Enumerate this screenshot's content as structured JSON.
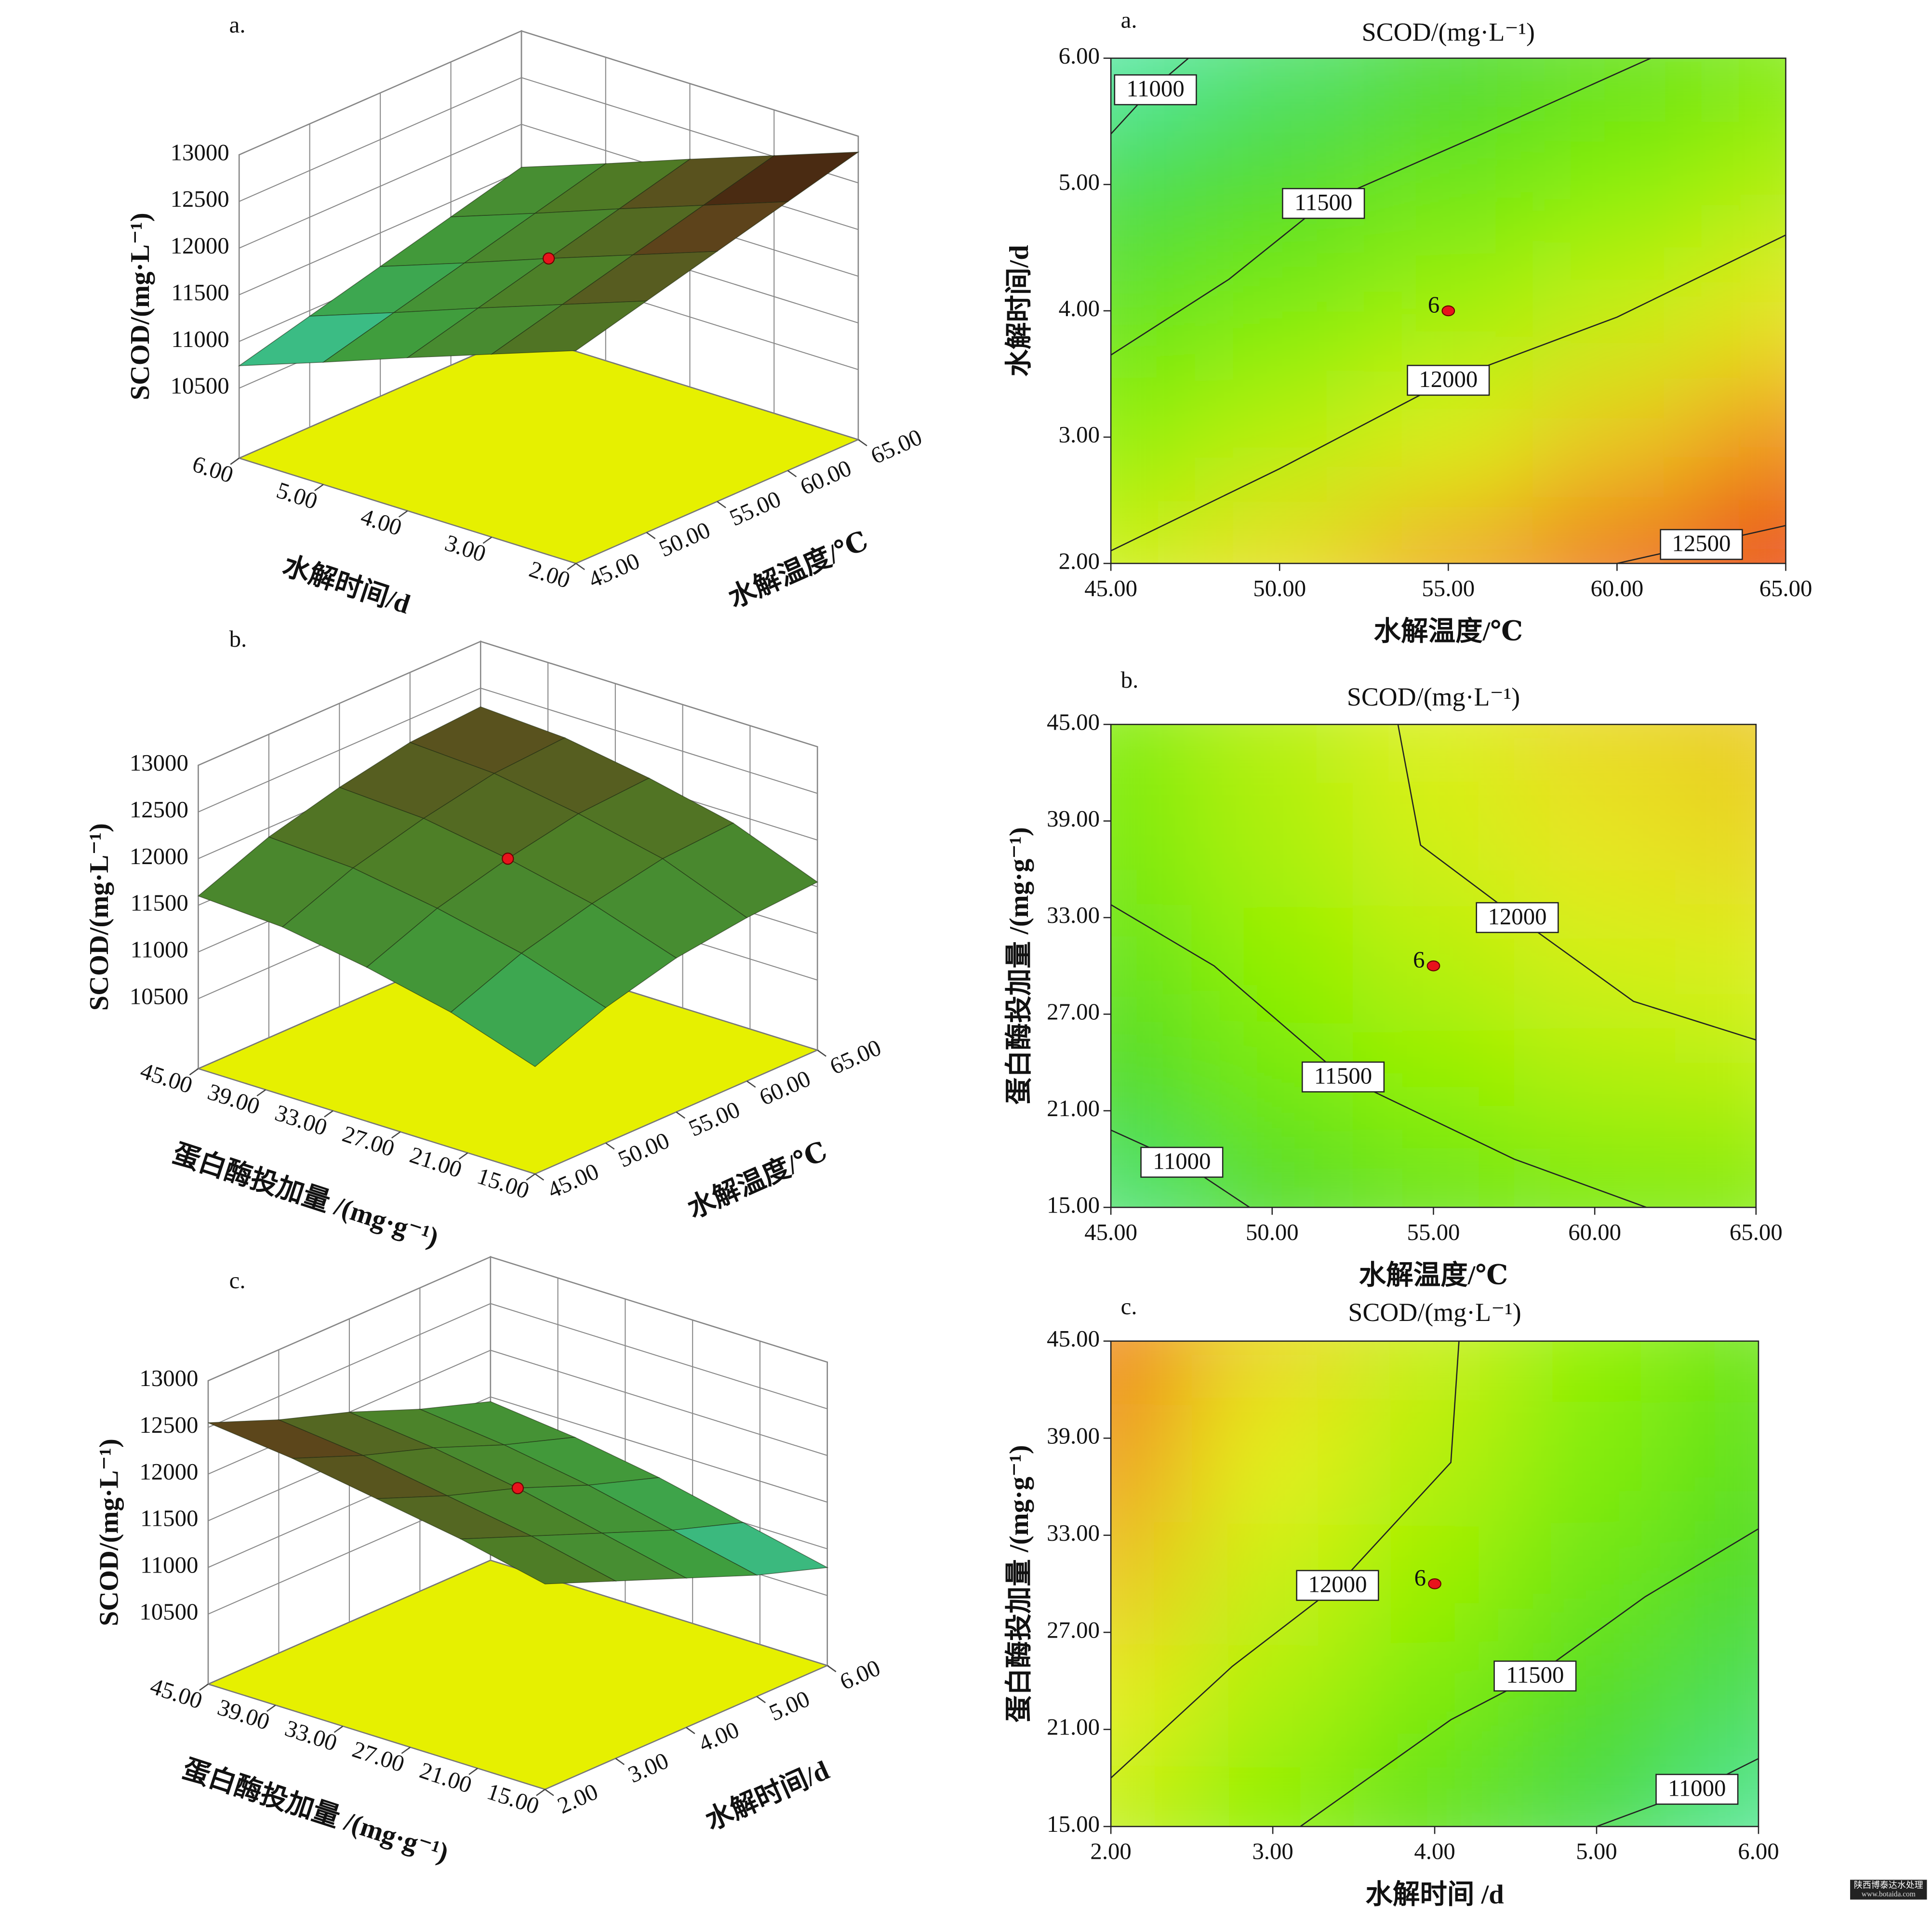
{
  "chart_data": [
    {
      "type": "surface3d",
      "panel": "a.",
      "xlabel": "水解温度/℃",
      "ylabel": "水解时间/d",
      "zlabel": "SCOD/(mg·L⁻¹)",
      "x": [
        45,
        50,
        55,
        60,
        65
      ],
      "y": [
        2,
        3,
        4,
        5,
        6
      ],
      "z": [
        [
          12030,
          12230,
          12430,
          12630,
          12830
        ],
        [
          11710,
          11910,
          12110,
          12310,
          12510
        ],
        [
          11390,
          11590,
          11790,
          11990,
          12190
        ],
        [
          11060,
          11260,
          11460,
          11660,
          11860
        ],
        [
          10740,
          10940,
          11140,
          11340,
          11540
        ]
      ],
      "xlim": [
        45,
        65
      ],
      "ylim": [
        2,
        6
      ],
      "zlim": [
        9750,
        13000
      ],
      "xticks": [
        {
          "value": 45,
          "label": "45.00"
        },
        {
          "value": 50,
          "label": "50.00"
        },
        {
          "value": 55,
          "label": "55.00"
        },
        {
          "value": 60,
          "label": "60.00"
        },
        {
          "value": 65,
          "label": "65.00"
        }
      ],
      "yticks": [
        {
          "value": 2,
          "label": "2.00"
        },
        {
          "value": 3,
          "label": "3.00"
        },
        {
          "value": 4,
          "label": "4.00"
        },
        {
          "value": 5,
          "label": "5.00"
        },
        {
          "value": 6,
          "label": "6.00"
        }
      ],
      "zticks": [
        10500,
        11000,
        11500,
        12000,
        12500,
        13000
      ],
      "center_point": {
        "x": 55,
        "y": 4,
        "z": 11790,
        "color": "#e8141c"
      },
      "floor_color": "#e6f000"
    },
    {
      "type": "contour",
      "panel": "a.",
      "title": "SCOD/(mg·L⁻¹)",
      "xlabel": "水解温度/℃",
      "ylabel": "水解时间/d",
      "x": [
        45,
        50,
        55,
        60,
        65
      ],
      "y": [
        2,
        3,
        4,
        5,
        6
      ],
      "z": [
        [
          12030,
          12230,
          12430,
          12630,
          12830
        ],
        [
          11710,
          11910,
          12110,
          12310,
          12510
        ],
        [
          11390,
          11590,
          11790,
          11990,
          12190
        ],
        [
          11060,
          11260,
          11460,
          11660,
          11860
        ],
        [
          10740,
          10940,
          11140,
          11340,
          11540
        ]
      ],
      "xlim": [
        45,
        65
      ],
      "ylim": [
        2,
        6
      ],
      "xticks": [
        {
          "value": 45,
          "label": "45.00"
        },
        {
          "value": 50,
          "label": "50.00"
        },
        {
          "value": 55,
          "label": "55.00"
        },
        {
          "value": 60,
          "label": "60.00"
        },
        {
          "value": 65,
          "label": "65.00"
        }
      ],
      "yticks": [
        {
          "value": 2,
          "label": "2.00"
        },
        {
          "value": 3,
          "label": "3.00"
        },
        {
          "value": 4,
          "label": "4.00"
        },
        {
          "value": 5,
          "label": "5.00"
        },
        {
          "value": 6,
          "label": "6.00"
        }
      ],
      "contours": [
        {
          "level": 11000,
          "x": [
            45,
            46.2,
            47.3
          ],
          "y": [
            5.4,
            5.75,
            6.0
          ]
        },
        {
          "level": 11500,
          "x": [
            45,
            48.5,
            51.3,
            56,
            61
          ],
          "y": [
            3.65,
            4.25,
            4.85,
            5.4,
            6.0
          ]
        },
        {
          "level": 12000,
          "x": [
            45,
            50,
            55,
            60,
            65
          ],
          "y": [
            2.1,
            2.75,
            3.45,
            3.95,
            4.6
          ]
        },
        {
          "level": 12500,
          "x": [
            60,
            62.5,
            65
          ],
          "y": [
            2.0,
            2.15,
            2.3
          ]
        }
      ],
      "center_point": {
        "x": 55,
        "y": 4,
        "count": 6,
        "color": "#e8141c"
      }
    },
    {
      "type": "surface3d",
      "panel": "b.",
      "xlabel": "水解温度/℃",
      "ylabel": "蛋白酶投加量 /(mg·g⁻¹)",
      "zlabel": "SCOD/(mg·L⁻¹)",
      "x": [
        45,
        50,
        55,
        60,
        65
      ],
      "y": [
        15,
        22.5,
        30,
        37.5,
        45
      ],
      "z": [
        [
          10900,
          11200,
          11400,
          11500,
          11550
        ],
        [
          11200,
          11500,
          11700,
          11850,
          11900
        ],
        [
          11400,
          11700,
          11900,
          12050,
          12100
        ],
        [
          11550,
          11850,
          12050,
          12200,
          12250
        ],
        [
          11600,
          11900,
          12100,
          12250,
          12300
        ]
      ],
      "xlim": [
        45,
        65
      ],
      "ylim": [
        15,
        45
      ],
      "zlim": [
        9750,
        13000
      ],
      "xticks": [
        {
          "value": 45,
          "label": "45.00"
        },
        {
          "value": 50,
          "label": "50.00"
        },
        {
          "value": 55,
          "label": "55.00"
        },
        {
          "value": 60,
          "label": "60.00"
        },
        {
          "value": 65,
          "label": "65.00"
        }
      ],
      "yticks": [
        {
          "value": 15,
          "label": "15.00"
        },
        {
          "value": 21,
          "label": "21.00"
        },
        {
          "value": 27,
          "label": "27.00"
        },
        {
          "value": 33,
          "label": "33.00"
        },
        {
          "value": 39,
          "label": "39.00"
        },
        {
          "value": 45,
          "label": "45.00"
        }
      ],
      "zticks": [
        10500,
        11000,
        11500,
        12000,
        12500,
        13000
      ],
      "center_point": {
        "x": 55,
        "y": 30,
        "z": 11900,
        "color": "#e8141c"
      },
      "floor_color": "#e6f000"
    },
    {
      "type": "contour",
      "panel": "b.",
      "title": "SCOD/(mg·L⁻¹)",
      "xlabel": "水解温度/℃",
      "ylabel": "蛋白酶投加量 /(mg·g⁻¹)",
      "x": [
        45,
        50,
        55,
        60,
        65
      ],
      "y": [
        15,
        22.5,
        30,
        37.5,
        45
      ],
      "z": [
        [
          10900,
          11200,
          11400,
          11500,
          11550
        ],
        [
          11200,
          11500,
          11700,
          11850,
          11900
        ],
        [
          11400,
          11700,
          11900,
          12050,
          12100
        ],
        [
          11550,
          11850,
          12050,
          12200,
          12250
        ],
        [
          11600,
          11900,
          12100,
          12250,
          12300
        ]
      ],
      "xlim": [
        45,
        65
      ],
      "ylim": [
        15,
        45
      ],
      "xticks": [
        {
          "value": 45,
          "label": "45.00"
        },
        {
          "value": 50,
          "label": "50.00"
        },
        {
          "value": 55,
          "label": "55.00"
        },
        {
          "value": 60,
          "label": "60.00"
        },
        {
          "value": 65,
          "label": "65.00"
        }
      ],
      "yticks": [
        {
          "value": 15,
          "label": "15.00"
        },
        {
          "value": 21,
          "label": "21.00"
        },
        {
          "value": 27,
          "label": "27.00"
        },
        {
          "value": 33,
          "label": "33.00"
        },
        {
          "value": 39,
          "label": "39.00"
        },
        {
          "value": 45,
          "label": "45.00"
        }
      ],
      "contours": [
        {
          "level": 11000,
          "x": [
            45,
            47.2,
            49.3
          ],
          "y": [
            19.8,
            17.8,
            15
          ]
        },
        {
          "level": 11500,
          "x": [
            45,
            48.2,
            52.2,
            57.5,
            61.6
          ],
          "y": [
            33.8,
            30,
            23.1,
            18,
            15
          ]
        },
        {
          "level": 12000,
          "x": [
            53.9,
            54.6,
            57.6,
            61.2,
            65
          ],
          "y": [
            45,
            37.5,
            33.0,
            27.8,
            25.4
          ]
        }
      ],
      "center_point": {
        "x": 55,
        "y": 30,
        "count": 6,
        "color": "#e8141c"
      }
    },
    {
      "type": "surface3d",
      "panel": "c.",
      "xlabel": "水解时间/d",
      "ylabel": "蛋白酶投加量 /(mg·g⁻¹)",
      "zlabel": "SCOD/(mg·L⁻¹)",
      "x": [
        2,
        3,
        4,
        5,
        6
      ],
      "y": [
        15,
        22.5,
        30,
        37.5,
        45
      ],
      "z": [
        [
          11950,
          11650,
          11350,
          11050,
          10800
        ],
        [
          12150,
          11850,
          11550,
          11250,
          11000
        ],
        [
          12300,
          12000,
          11750,
          11450,
          11200
        ],
        [
          12450,
          12150,
          11900,
          11600,
          11350
        ],
        [
          12550,
          12250,
          12000,
          11700,
          11450
        ]
      ],
      "xlim": [
        2,
        6
      ],
      "ylim": [
        15,
        45
      ],
      "zlim": [
        9750,
        13000
      ],
      "xticks": [
        {
          "value": 2,
          "label": "2.00"
        },
        {
          "value": 3,
          "label": "3.00"
        },
        {
          "value": 4,
          "label": "4.00"
        },
        {
          "value": 5,
          "label": "5.00"
        },
        {
          "value": 6,
          "label": "6.00"
        }
      ],
      "yticks": [
        {
          "value": 15,
          "label": "15.00"
        },
        {
          "value": 21,
          "label": "21.00"
        },
        {
          "value": 27,
          "label": "27.00"
        },
        {
          "value": 33,
          "label": "33.00"
        },
        {
          "value": 39,
          "label": "39.00"
        },
        {
          "value": 45,
          "label": "45.00"
        }
      ],
      "zticks": [
        10500,
        11000,
        11500,
        12000,
        12500,
        13000
      ],
      "center_point": {
        "x": 4,
        "y": 30,
        "z": 11750,
        "color": "#e8141c"
      },
      "floor_color": "#e6f000"
    },
    {
      "type": "contour",
      "panel": "c.",
      "title": "SCOD/(mg·L⁻¹)",
      "xlabel": "水解时间 /d",
      "ylabel": "蛋白酶投加量 /(mg·g⁻¹)",
      "x": [
        2,
        3,
        4,
        5,
        6
      ],
      "y": [
        15,
        22.5,
        30,
        37.5,
        45
      ],
      "z": [
        [
          11950,
          11650,
          11350,
          11050,
          10800
        ],
        [
          12150,
          11850,
          11550,
          11250,
          11000
        ],
        [
          12300,
          12000,
          11750,
          11450,
          11200
        ],
        [
          12450,
          12150,
          11900,
          11600,
          11350
        ],
        [
          12550,
          12250,
          12000,
          11700,
          11450
        ]
      ],
      "xlim": [
        2,
        6
      ],
      "ylim": [
        15,
        45
      ],
      "xticks": [
        {
          "value": 2,
          "label": "2.00"
        },
        {
          "value": 3,
          "label": "3.00"
        },
        {
          "value": 4,
          "label": "4.00"
        },
        {
          "value": 5,
          "label": "5.00"
        },
        {
          "value": 6,
          "label": "6.00"
        }
      ],
      "yticks": [
        {
          "value": 15,
          "label": "15.00"
        },
        {
          "value": 21,
          "label": "21.00"
        },
        {
          "value": 27,
          "label": "27.00"
        },
        {
          "value": 33,
          "label": "33.00"
        },
        {
          "value": 39,
          "label": "39.00"
        },
        {
          "value": 45,
          "label": "45.00"
        }
      ],
      "contours": [
        {
          "level": 11000,
          "x": [
            5.0,
            5.62,
            6.0
          ],
          "y": [
            15,
            17.3,
            19.2
          ]
        },
        {
          "level": 11500,
          "x": [
            3.17,
            4.1,
            4.62,
            5.3,
            6.0
          ],
          "y": [
            15,
            21.6,
            24.3,
            29.2,
            33.4
          ]
        },
        {
          "level": 12000,
          "x": [
            4.15,
            4.1,
            3.4,
            2.75,
            2.0
          ],
          "y": [
            45,
            37.5,
            29.9,
            24.9,
            18.0
          ]
        }
      ],
      "center_point": {
        "x": 4,
        "y": 30,
        "count": 6,
        "color": "#e8141c"
      }
    }
  ],
  "watermark": {
    "line1": "陕西博泰达水处理",
    "line2": "www.botaida.com"
  }
}
